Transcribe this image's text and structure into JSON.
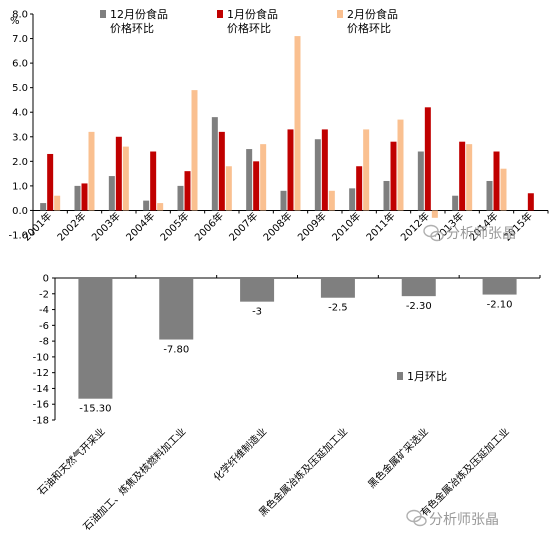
{
  "chart_data": [
    {
      "type": "bar",
      "categories": [
        "2001年",
        "2002年",
        "2003年",
        "2004年",
        "2005年",
        "2006年",
        "2007年",
        "2008年",
        "2009年",
        "2010年",
        "2011年",
        "2012年",
        "2013年",
        "2014年",
        "2015年"
      ],
      "series": [
        {
          "name": "12月份食品价格环比",
          "color": "#7f7f7f",
          "values": [
            0.3,
            1.0,
            1.4,
            0.4,
            1.0,
            3.8,
            2.5,
            0.8,
            2.9,
            0.9,
            1.2,
            2.4,
            0.6,
            1.2,
            null
          ]
        },
        {
          "name": "1月份食品价格环比",
          "color": "#c00000",
          "values": [
            2.3,
            1.1,
            3.0,
            2.4,
            1.6,
            3.2,
            2.0,
            3.3,
            3.3,
            1.8,
            2.8,
            4.2,
            2.8,
            2.4,
            0.7
          ]
        },
        {
          "name": "2月份食品价格环比",
          "color": "#fac090",
          "values": [
            0.6,
            3.2,
            2.6,
            0.3,
            4.9,
            1.8,
            2.7,
            7.1,
            0.8,
            3.3,
            3.7,
            -0.3,
            2.7,
            1.7,
            null
          ]
        }
      ],
      "ylabel": "%",
      "yticks": [
        "-1.0",
        "0.0",
        "1.0",
        "2.0",
        "3.0",
        "4.0",
        "5.0",
        "6.0",
        "7.0",
        "8.0"
      ],
      "ylim": [
        -1,
        8
      ],
      "legend": "top"
    },
    {
      "type": "bar",
      "categories": [
        "石油和天然气开采业",
        "石油加工、炼焦及核燃料加工业",
        "化学纤维制造业",
        "黑色金属冶炼及压延加工业",
        "黑色金属矿采选业",
        "有色金属冶炼及压延加工业"
      ],
      "series": [
        {
          "name": "1月环比",
          "color": "#7f7f7f",
          "values": [
            -15.3,
            -7.8,
            -3,
            -2.5,
            -2.3,
            -2.1
          ]
        }
      ],
      "data_labels": [
        "-15.30",
        "-7.80",
        "-3",
        "-2.5",
        "-2.30",
        "-2.10"
      ],
      "yticks": [
        "-18",
        "-16",
        "-14",
        "-12",
        "-10",
        "-8",
        "-6",
        "-4",
        "-2",
        "0"
      ],
      "ylim": [
        -18,
        0
      ],
      "legend": "right"
    }
  ],
  "watermarks": [
    "分析师张晶",
    "分析师张晶"
  ],
  "icons": {
    "watermark": "wechat-icon"
  }
}
